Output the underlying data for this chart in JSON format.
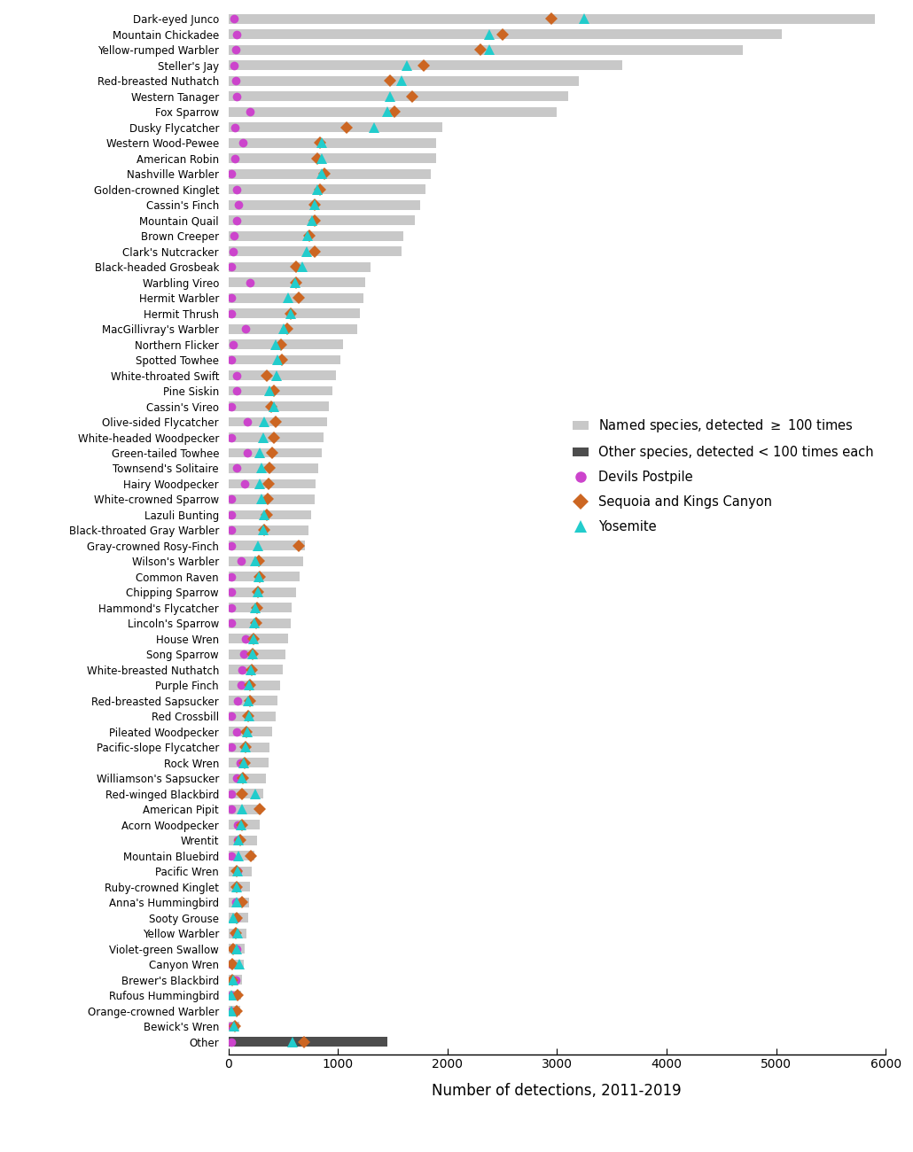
{
  "species": [
    "Dark-eyed Junco",
    "Mountain Chickadee",
    "Yellow-rumped Warbler",
    "Steller's Jay",
    "Red-breasted Nuthatch",
    "Western Tanager",
    "Fox Sparrow",
    "Dusky Flycatcher",
    "Western Wood-Pewee",
    "American Robin",
    "Nashville Warbler",
    "Golden-crowned Kinglet",
    "Cassin's Finch",
    "Mountain Quail",
    "Brown Creeper",
    "Clark's Nutcracker",
    "Black-headed Grosbeak",
    "Warbling Vireo",
    "Hermit Warbler",
    "Hermit Thrush",
    "MacGillivray's Warbler",
    "Northern Flicker",
    "Spotted Towhee",
    "White-throated Swift",
    "Pine Siskin",
    "Cassin's Vireo",
    "Olive-sided Flycatcher",
    "White-headed Woodpecker",
    "Green-tailed Towhee",
    "Townsend's Solitaire",
    "Hairy Woodpecker",
    "White-crowned Sparrow",
    "Lazuli Bunting",
    "Black-throated Gray Warbler",
    "Gray-crowned Rosy-Finch",
    "Wilson's Warbler",
    "Common Raven",
    "Chipping Sparrow",
    "Hammond's Flycatcher",
    "Lincoln's Sparrow",
    "House Wren",
    "Song Sparrow",
    "White-breasted Nuthatch",
    "Purple Finch",
    "Red-breasted Sapsucker",
    "Red Crossbill",
    "Pileated Woodpecker",
    "Pacific-slope Flycatcher",
    "Rock Wren",
    "Williamson's Sapsucker",
    "Red-winged Blackbird",
    "American Pipit",
    "Acorn Woodpecker",
    "Wrentit",
    "Mountain Bluebird",
    "Pacific Wren",
    "Ruby-crowned Kinglet",
    "Anna's Hummingbird",
    "Sooty Grouse",
    "Yellow Warbler",
    "Violet-green Swallow",
    "Canyon Wren",
    "Brewer's Blackbird",
    "Rufous Hummingbird",
    "Orange-crowned Warbler",
    "Bewick's Wren",
    "Other"
  ],
  "bar_values": [
    5900,
    5050,
    4700,
    3600,
    3200,
    3100,
    3000,
    1950,
    1900,
    1900,
    1850,
    1800,
    1750,
    1700,
    1600,
    1580,
    1300,
    1250,
    1230,
    1200,
    1180,
    1050,
    1020,
    980,
    950,
    920,
    900,
    870,
    850,
    820,
    800,
    790,
    760,
    730,
    700,
    680,
    650,
    620,
    580,
    570,
    550,
    520,
    500,
    470,
    445,
    430,
    400,
    380,
    365,
    345,
    320,
    300,
    285,
    260,
    235,
    215,
    200,
    188,
    178,
    168,
    152,
    140,
    128,
    118,
    108,
    98,
    1450
  ],
  "bar_colors": [
    "#c8c8c8",
    "#c8c8c8",
    "#c8c8c8",
    "#c8c8c8",
    "#c8c8c8",
    "#c8c8c8",
    "#c8c8c8",
    "#c8c8c8",
    "#c8c8c8",
    "#c8c8c8",
    "#c8c8c8",
    "#c8c8c8",
    "#c8c8c8",
    "#c8c8c8",
    "#c8c8c8",
    "#c8c8c8",
    "#c8c8c8",
    "#c8c8c8",
    "#c8c8c8",
    "#c8c8c8",
    "#c8c8c8",
    "#c8c8c8",
    "#c8c8c8",
    "#c8c8c8",
    "#c8c8c8",
    "#c8c8c8",
    "#c8c8c8",
    "#c8c8c8",
    "#c8c8c8",
    "#c8c8c8",
    "#c8c8c8",
    "#c8c8c8",
    "#c8c8c8",
    "#c8c8c8",
    "#c8c8c8",
    "#c8c8c8",
    "#c8c8c8",
    "#c8c8c8",
    "#c8c8c8",
    "#c8c8c8",
    "#c8c8c8",
    "#c8c8c8",
    "#c8c8c8",
    "#c8c8c8",
    "#c8c8c8",
    "#c8c8c8",
    "#c8c8c8",
    "#c8c8c8",
    "#c8c8c8",
    "#c8c8c8",
    "#c8c8c8",
    "#c8c8c8",
    "#c8c8c8",
    "#c8c8c8",
    "#c8c8c8",
    "#c8c8c8",
    "#c8c8c8",
    "#c8c8c8",
    "#c8c8c8",
    "#c8c8c8",
    "#c8c8c8",
    "#c8c8c8",
    "#c8c8c8",
    "#c8c8c8",
    "#c8c8c8",
    "#c8c8c8",
    "#4d4d4d"
  ],
  "devils_postpile": [
    50,
    80,
    70,
    55,
    65,
    80,
    200,
    60,
    130,
    60,
    30,
    80,
    90,
    78,
    50,
    48,
    30,
    195,
    30,
    28,
    160,
    48,
    28,
    78,
    80,
    28,
    175,
    28,
    175,
    78,
    148,
    28,
    28,
    28,
    28,
    118,
    28,
    28,
    28,
    28,
    158,
    138,
    128,
    118,
    88,
    28,
    78,
    28,
    108,
    78,
    28,
    28,
    88,
    88,
    28,
    88,
    78,
    68,
    78,
    58,
    78,
    28,
    68,
    28,
    28,
    28,
    30
  ],
  "sequoia_kings": [
    2950,
    2500,
    2300,
    1780,
    1480,
    1680,
    1520,
    1080,
    840,
    810,
    880,
    840,
    790,
    790,
    740,
    790,
    620,
    620,
    640,
    570,
    540,
    480,
    490,
    350,
    420,
    390,
    430,
    420,
    400,
    380,
    370,
    360,
    350,
    330,
    640,
    280,
    290,
    270,
    260,
    255,
    233,
    225,
    215,
    195,
    195,
    185,
    165,
    155,
    150,
    135,
    125,
    285,
    125,
    108,
    207,
    78,
    78,
    125,
    78,
    68,
    48,
    38,
    38,
    88,
    78,
    58,
    690
  ],
  "yosemite": [
    3250,
    2380,
    2380,
    1630,
    1580,
    1480,
    1450,
    1330,
    855,
    855,
    855,
    815,
    785,
    765,
    725,
    715,
    675,
    610,
    545,
    568,
    508,
    430,
    450,
    440,
    380,
    420,
    330,
    320,
    290,
    300,
    290,
    300,
    330,
    320,
    270,
    250,
    280,
    270,
    250,
    240,
    233,
    223,
    203,
    193,
    178,
    193,
    173,
    158,
    143,
    128,
    243,
    123,
    118,
    95,
    95,
    85,
    75,
    75,
    45,
    85,
    75,
    105,
    45,
    28,
    28,
    55,
    585
  ],
  "xlim": [
    0,
    6000
  ],
  "xlabel": "Number of detections, 2011-2019",
  "bar_height": 0.62,
  "dp_color": "#cc44cc",
  "sk_color": "#cc6622",
  "yo_color": "#22cccc",
  "legend_gray_color": "#c8c8c8",
  "legend_dark_color": "#4d4d4d"
}
